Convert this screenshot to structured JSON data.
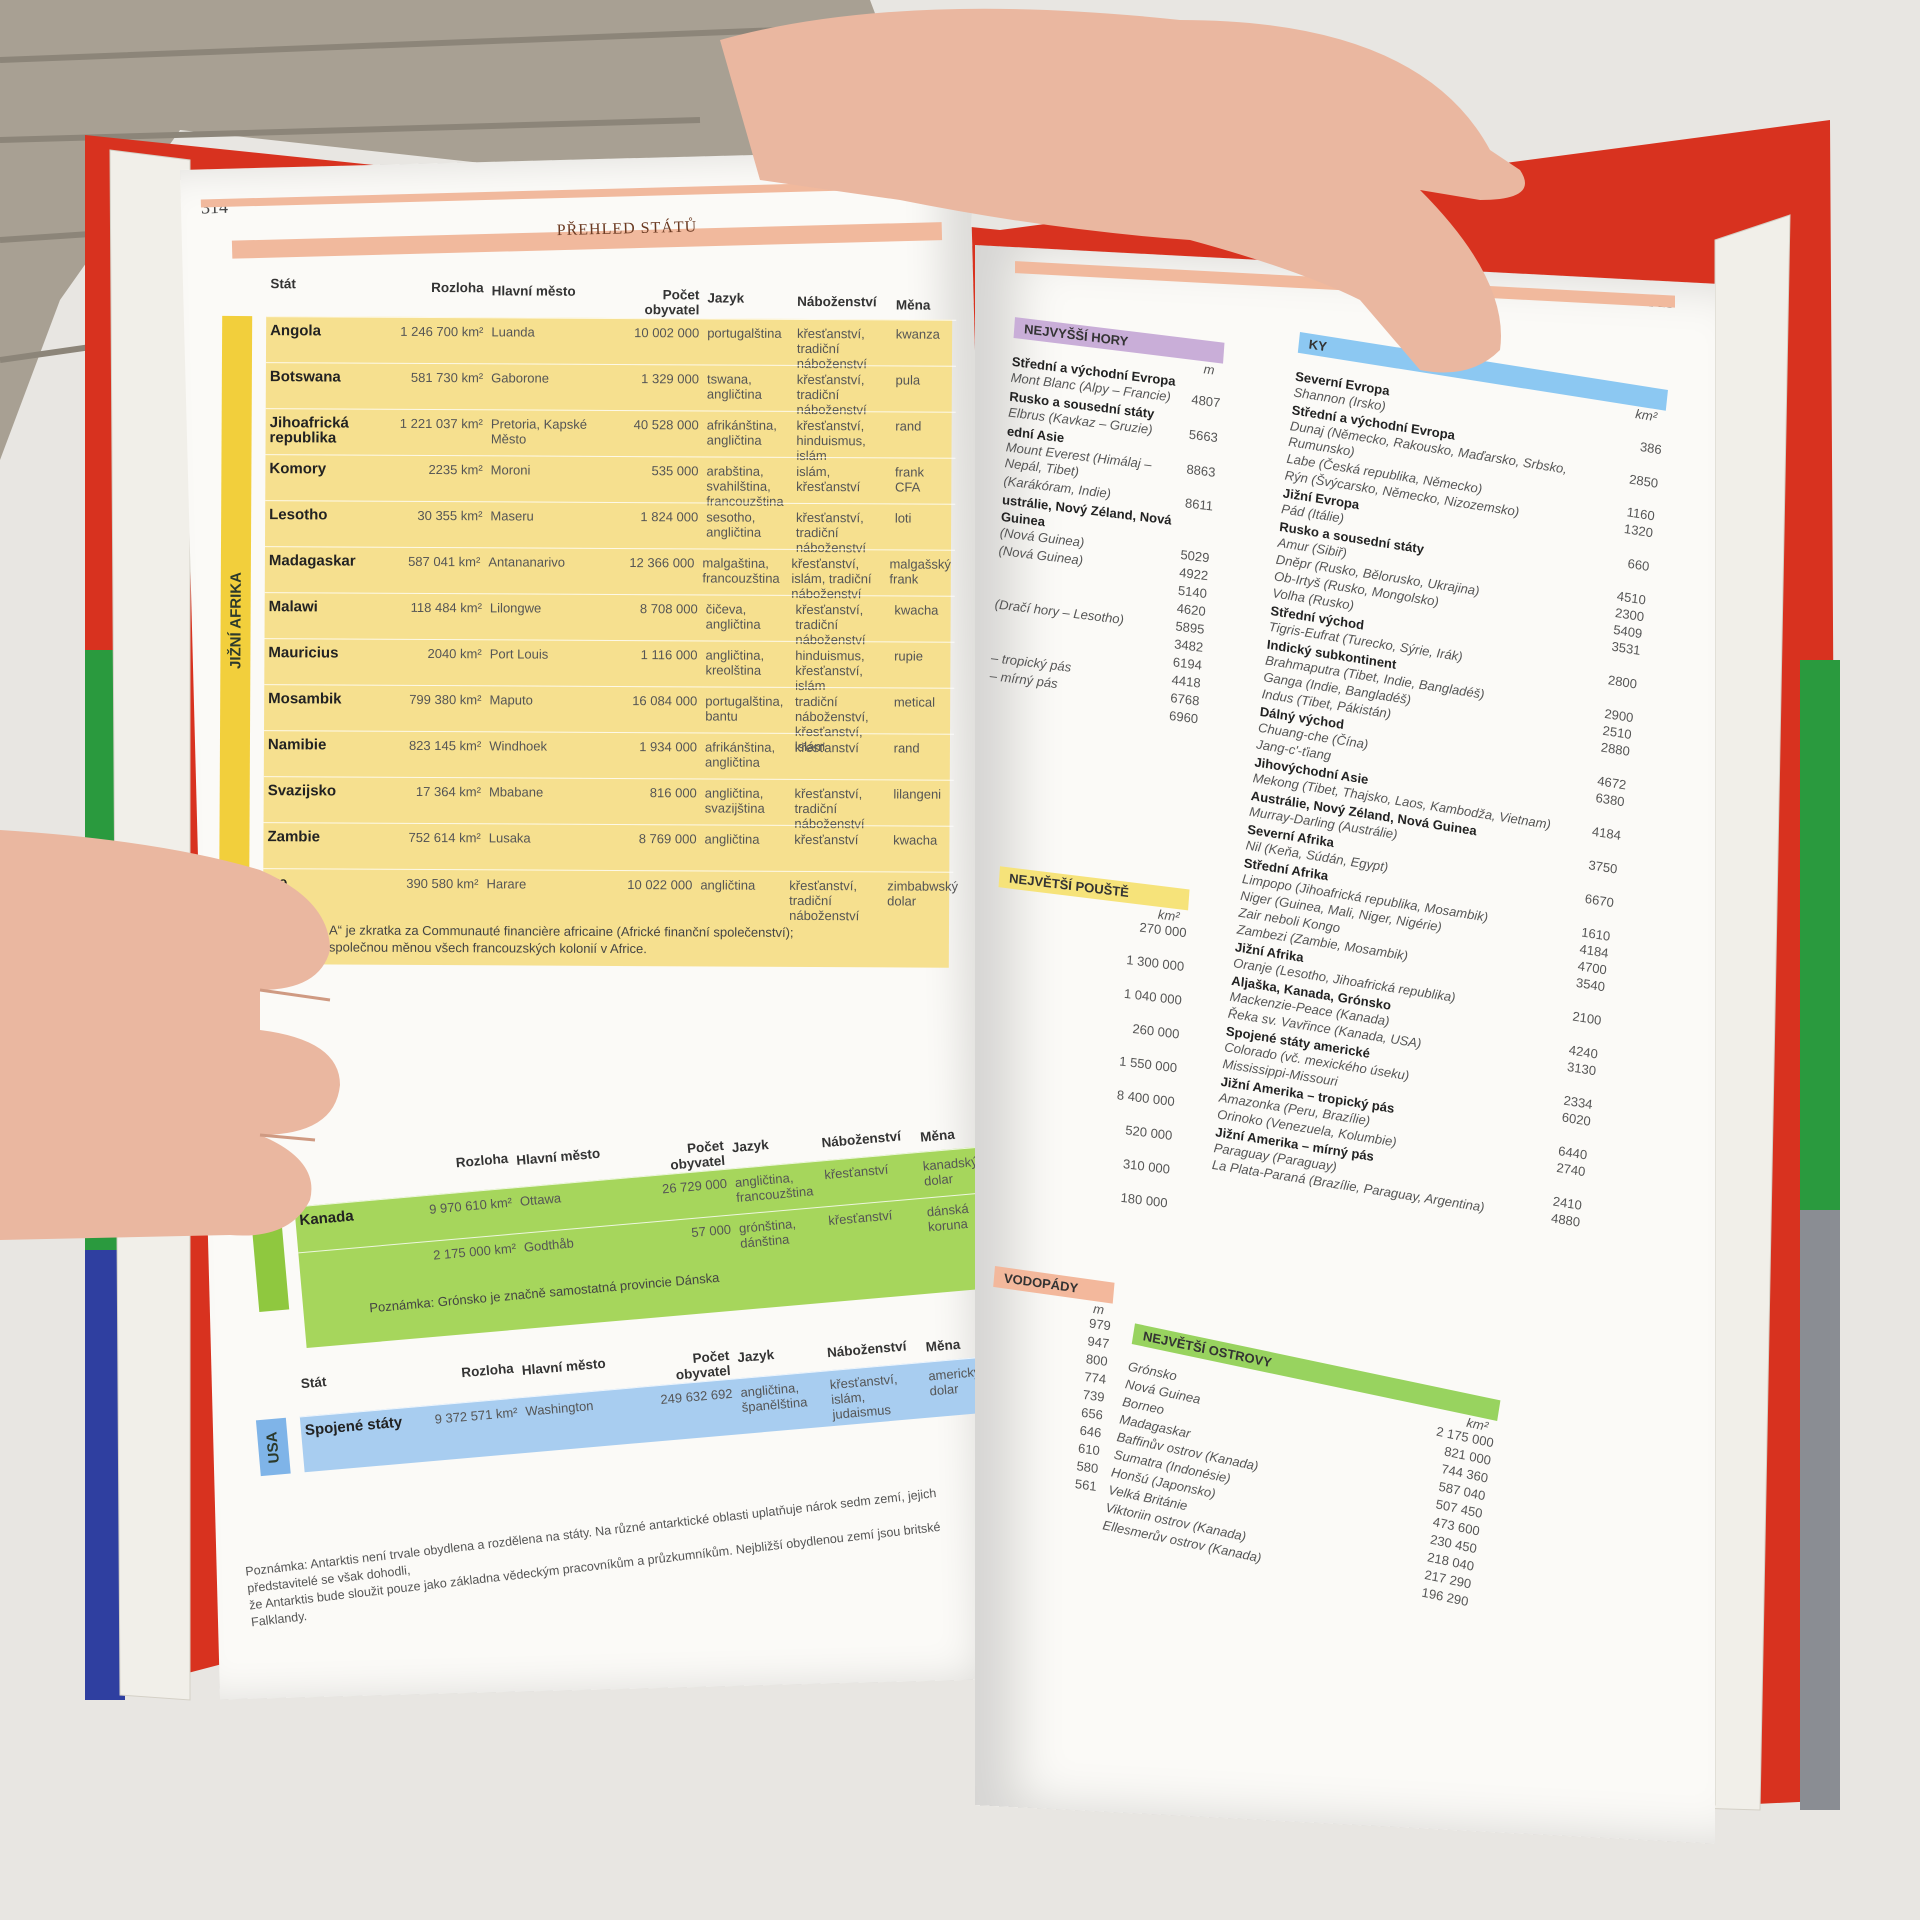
{
  "left_page": {
    "page_number": "314",
    "header": "PŘEHLED STÁTŮ",
    "sections": [
      {
        "region": "JIŽNÍ AFRIKA",
        "columns": [
          "Stát",
          "Rozloha",
          "Hlavní město",
          "Počet obyvatel",
          "Jazyk",
          "Náboženství",
          "Měna"
        ],
        "rows": [
          [
            "Angola",
            "1 246 700 km²",
            "Luanda",
            "10 002 000",
            "portugalština",
            "křesťanství, tradiční náboženství",
            "kwanza"
          ],
          [
            "Botswana",
            "581 730 km²",
            "Gaborone",
            "1 329 000",
            "tswana, angličtina",
            "křesťanství, tradiční náboženství",
            "pula"
          ],
          [
            "Jihoafrická republika",
            "1 221 037 km²",
            "Pretoria, Kapské Město",
            "40 528 000",
            "afrikánština, angličtina",
            "křesťanství, hinduismus, islám",
            "rand"
          ],
          [
            "Komory",
            "2235 km²",
            "Moroni",
            "535 000",
            "arabština, svahilština, francouzština",
            "islám, křesťanství",
            "frank CFA"
          ],
          [
            "Lesotho",
            "30 355 km²",
            "Maseru",
            "1 824 000",
            "sesotho, angličtina",
            "křesťanství, tradiční náboženství",
            "loti"
          ],
          [
            "Madagaskar",
            "587 041 km²",
            "Antananarivo",
            "12 366 000",
            "malgaština, francouzština",
            "křesťanství, islám, tradiční náboženství",
            "malgašský frank"
          ],
          [
            "Malawi",
            "118 484 km²",
            "Lilongwe",
            "8 708 000",
            "čičeva, angličtina",
            "křesťanství, tradiční náboženství",
            "kwacha"
          ],
          [
            "Mauricius",
            "2040 km²",
            "Port Louis",
            "1 116 000",
            "angličtina, kreolština",
            "hinduismus, křesťanství, islám",
            "rupie"
          ],
          [
            "Mosambik",
            "799 380 km²",
            "Maputo",
            "16 084 000",
            "portugalština, bantu",
            "tradiční náboženství, křesťanství, islám",
            "metical"
          ],
          [
            "Namibie",
            "823 145 km²",
            "Windhoek",
            "1 934 000",
            "afrikánština, angličtina",
            "křesťanství",
            "rand"
          ],
          [
            "Svazijsko",
            "17 364 km²",
            "Mbabane",
            "816 000",
            "angličtina, svazijština",
            "křesťanství, tradiční náboženství",
            "lilangeni"
          ],
          [
            "Zambie",
            "752 614 km²",
            "Lusaka",
            "8 769 000",
            "angličtina",
            "křesťanství",
            "kwacha"
          ],
          [
            "we",
            "390 580 km²",
            "Harare",
            "10 022 000",
            "angličtina",
            "křesťanství, tradiční náboženství",
            "zimbabwský dolar"
          ]
        ],
        "note": [
          "A“ je zkratka za Communauté financière africaine (Africké finanční společenství);",
          "společnou měnou všech francouzských kolonií v Africe."
        ]
      },
      {
        "region": null,
        "columns": [
          null,
          "Rozloha",
          "Hlavní město",
          "Počet obyvatel",
          "Jazyk",
          "Náboženství",
          "Měna"
        ],
        "rows": [
          [
            "Kanada",
            "9 970 610 km²",
            "Ottawa",
            "26 729 000",
            "angličtina, francouzština",
            "křesťanství",
            "kanadský dolar"
          ],
          [
            null,
            "2 175 000 km²",
            "Godthåb",
            "57 000",
            "grónština, dánština",
            "křesťanství",
            "dánská koruna"
          ]
        ],
        "note": [
          "Poznámka: Grónsko je značně samostatná provincie Dánska"
        ]
      },
      {
        "region": "USA",
        "columns": [
          "Stát",
          "Rozloha",
          "Hlavní město",
          "Počet obyvatel",
          "Jazyk",
          "Náboženství",
          "Měna"
        ],
        "rows": [
          [
            "Spojené státy",
            "9 372 571 km²",
            "Washington",
            "249 632 692",
            "angličtina, španělština",
            "křesťanství, islám, judaismus",
            "americký dolar"
          ]
        ],
        "note": []
      }
    ],
    "footnote": [
      "Poznámka: Antarktis není trvale obydlena a rozdělena na státy. Na různé antarktické oblasti uplatňuje nárok sedm zemí, jejich představitelé se však dohodli,",
      "že Antarktis bude sloužit pouze jako základna vědeckým pracovníkům a průzkumníkům. Nejbližší obydlenou zemí jsou britské Falklandy."
    ]
  },
  "right_page": {
    "page_number": "315",
    "lists": [
      {
        "title": "NEJVYŠŠÍ HORY",
        "unit": "m",
        "items": [
          {
            "heading": "Střední a východní Evropa"
          },
          {
            "name": "Mont Blanc (Alpy – Francie)",
            "value": "4807"
          },
          {
            "heading": "Rusko a sousední státy"
          },
          {
            "name": "Elbrus (Kavkaz – Gruzie)",
            "value": "5663"
          },
          {
            "heading": "ední Asie"
          },
          {
            "name": "Mount Everest (Himálaj – Nepál, Tibet)",
            "value": "8863"
          },
          {
            "name": "(Karákóram, Indie)",
            "value": "8611"
          },
          {
            "heading": "ustrálie, Nový Zéland, Nová Guinea"
          },
          {
            "name": "(Nová Guinea)",
            "value": "5029"
          },
          {
            "name": "(Nová Guinea)",
            "value": "4922"
          },
          {
            "name": null,
            "value": "5140"
          },
          {
            "name": null,
            "value": "4620"
          },
          {
            "name": "(Dračí hory – Lesotho)",
            "value": "5895"
          },
          {
            "name": null,
            "value": "3482"
          },
          {
            "name": null,
            "value": "6194"
          },
          {
            "name": "– tropický pás",
            "value": "4418"
          },
          {
            "name": "– mírný pás",
            "value": "6768"
          },
          {
            "name": null,
            "value": "6960"
          }
        ]
      },
      {
        "title": "KY",
        "unit": "km²",
        "items": [
          {
            "heading": "Severní Evropa"
          },
          {
            "name": "Shannon (Irsko)",
            "value": "386"
          },
          {
            "heading": "Střední a východní Evropa"
          },
          {
            "name": "Dunaj (Německo, Rakousko, Maďarsko, Srbsko, Rumunsko)",
            "value": "2850"
          },
          {
            "name": "Labe (Česká republika, Německo)",
            "value": "1160"
          },
          {
            "name": "Rýn (Švýcarsko, Německo, Nizozemsko)",
            "value": "1320"
          },
          {
            "heading": "Jižní Evropa"
          },
          {
            "name": "Pád (Itálie)",
            "value": "660"
          },
          {
            "heading": "Rusko a sousední státy"
          },
          {
            "name": "Amur (Sibiř)",
            "value": "4510"
          },
          {
            "name": "Dněpr (Rusko, Bělorusko, Ukrajina)",
            "value": "2300"
          },
          {
            "name": "Ob-Irtyš (Rusko, Mongolsko)",
            "value": "5409"
          },
          {
            "name": "Volha (Rusko)",
            "value": "3531"
          },
          {
            "heading": "Střední východ"
          },
          {
            "name": "Tigris-Eufrat (Turecko, Sýrie, Irák)",
            "value": "2800"
          },
          {
            "heading": "Indický subkontinent"
          },
          {
            "name": "Brahmaputra (Tibet, Indie, Bangladéš)",
            "value": "2900"
          },
          {
            "name": "Ganga (Indie, Bangladéš)",
            "value": "2510"
          },
          {
            "name": "Indus (Tibet, Pákistán)",
            "value": "2880"
          },
          {
            "heading": "Dálný východ"
          },
          {
            "name": "Chuang-che (Čína)",
            "value": "4672"
          },
          {
            "name": "Jang-c'-ťiang",
            "value": "6380"
          },
          {
            "heading": "Jihovýchodní Asie"
          },
          {
            "name": "Mekong (Tibet, Thajsko, Laos, Kambodža, Vietnam)",
            "value": "4184"
          },
          {
            "heading": "Austrálie, Nový Zéland, Nová Guinea"
          },
          {
            "name": "Murray-Darling (Austrálie)",
            "value": "3750"
          },
          {
            "heading": "Severní Afrika"
          },
          {
            "name": "Nil (Keňa, Súdán, Egypt)",
            "value": "6670"
          },
          {
            "heading": "Střední Afrika"
          },
          {
            "name": "Limpopo (Jihoafrická republika, Mosambik)",
            "value": "1610"
          },
          {
            "name": "Niger (Guinea, Mali, Niger, Nigérie)",
            "value": "4184"
          },
          {
            "name": "Zair neboli Kongo",
            "value": "4700"
          },
          {
            "name": "Zambezi (Zambie, Mosambik)",
            "value": "3540"
          },
          {
            "heading": "Jižní Afrika"
          },
          {
            "name": "Oranje (Lesotho, Jihoafrická republika)",
            "value": "2100"
          },
          {
            "heading": "Aljaška, Kanada, Grónsko"
          },
          {
            "name": "Mackenzie-Peace (Kanada)",
            "value": "4240"
          },
          {
            "name": "Řeka sv. Vavřince (Kanada, USA)",
            "value": "3130"
          },
          {
            "heading": "Spojené státy americké"
          },
          {
            "name": "Colorado (vč. mexického úseku)",
            "value": "2334"
          },
          {
            "name": "Mississippi-Missouri",
            "value": "6020"
          },
          {
            "heading": "Jižní Amerika – tropický pás"
          },
          {
            "name": "Amazonka (Peru, Brazílie)",
            "value": "6440"
          },
          {
            "name": "Orinoko (Venezuela, Kolumbie)",
            "value": "2740"
          },
          {
            "heading": "Jižní Amerika – mírný pás"
          },
          {
            "name": "Paraguay (Paraguay)",
            "value": "2410"
          },
          {
            "name": "La Plata-Paraná (Brazílie, Paraguay, Argentina)",
            "value": "4880"
          }
        ]
      },
      {
        "title": "NEJVĚTŠÍ POUŠTĚ",
        "unit": "km²",
        "items": [
          {
            "name": null,
            "value": "270 000"
          },
          {
            "name": null,
            "value": "1 300 000"
          },
          {
            "name": null,
            "value": "1 040 000"
          },
          {
            "name": null,
            "value": "260 000"
          },
          {
            "name": null,
            "value": "1 550 000"
          },
          {
            "name": null,
            "value": "8 400 000"
          },
          {
            "name": null,
            "value": "520 000"
          },
          {
            "name": null,
            "value": "310 000"
          },
          {
            "name": null,
            "value": "180 000"
          }
        ]
      },
      {
        "title": "VODOPÁDY",
        "unit": "m",
        "items": [
          {
            "name": null,
            "value": "979"
          },
          {
            "name": null,
            "value": "947"
          },
          {
            "name": null,
            "value": "800"
          },
          {
            "name": null,
            "value": "774"
          },
          {
            "name": null,
            "value": "739"
          },
          {
            "name": null,
            "value": "656"
          },
          {
            "name": null,
            "value": "646"
          },
          {
            "name": null,
            "value": "610"
          },
          {
            "name": null,
            "value": "580"
          },
          {
            "name": null,
            "value": "561"
          }
        ]
      },
      {
        "title": "NEJVĚTŠÍ OSTROVY",
        "unit": "km²",
        "items": [
          {
            "name": "Grónsko",
            "value": "2 175 000"
          },
          {
            "name": "Nová Guinea",
            "value": "821 000"
          },
          {
            "name": "Borneo",
            "value": "744 360"
          },
          {
            "name": "Madagaskar",
            "value": "587 040"
          },
          {
            "name": "Baffinův ostrov (Kanada)",
            "value": "507 450"
          },
          {
            "name": "Sumatra (Indonésie)",
            "value": "473 600"
          },
          {
            "name": "Honšú (Japonsko)",
            "value": "230 450"
          },
          {
            "name": "Velká Británie",
            "value": "218 040"
          },
          {
            "name": "Viktoriin ostrov (Kanada)",
            "value": "217 290"
          },
          {
            "name": "Ellesmerův ostrov (Kanada)",
            "value": "196 290"
          }
        ]
      }
    ]
  }
}
